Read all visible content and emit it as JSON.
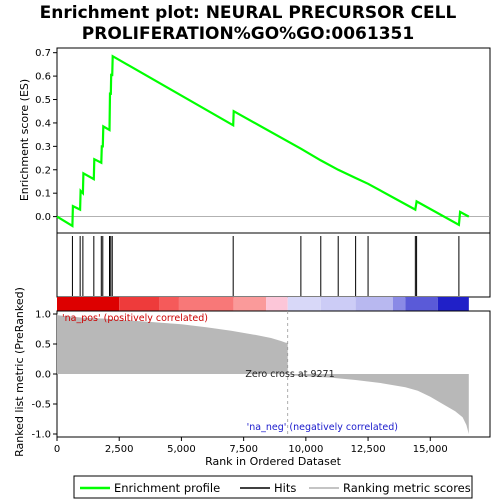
{
  "chart_data": {
    "type": "line",
    "title_line1": "Enrichment plot: NEURAL PRECURSOR CELL",
    "title_line2": "PROLIFERATION%GO%GO:0061351",
    "es_panel": {
      "ylabel": "Enrichment score (ES)",
      "ylim": [
        -0.07,
        0.72
      ],
      "yticks": [
        "0.0",
        "0.1",
        "0.2",
        "0.3",
        "0.4",
        "0.5",
        "0.6",
        "0.7"
      ],
      "ytick_values": [
        0.0,
        0.1,
        0.2,
        0.3,
        0.4,
        0.5,
        0.6,
        0.7
      ],
      "line_color": "#00ff00",
      "series": {
        "name": "Enrichment profile",
        "x": [
          0,
          620,
          640,
          930,
          950,
          1040,
          1060,
          1480,
          1500,
          1780,
          1800,
          1840,
          1860,
          2110,
          2130,
          2160,
          2180,
          2220,
          2240,
          7080,
          7100,
          9800,
          10600,
          11300,
          12000,
          12500,
          14400,
          14450,
          16150,
          16200,
          16550
        ],
        "y": [
          0.0,
          -0.04,
          0.045,
          0.03,
          0.11,
          0.1,
          0.185,
          0.16,
          0.245,
          0.23,
          0.3,
          0.3,
          0.385,
          0.37,
          0.53,
          0.52,
          0.61,
          0.6,
          0.685,
          0.39,
          0.45,
          0.29,
          0.24,
          0.2,
          0.165,
          0.14,
          0.03,
          0.065,
          -0.035,
          0.02,
          0.0
        ]
      }
    },
    "hits_panel": {
      "hit_positions": [
        620,
        930,
        1040,
        1480,
        1780,
        1840,
        2110,
        2160,
        2220,
        7080,
        9800,
        10600,
        11300,
        12000,
        12500,
        14400,
        14450,
        16150
      ]
    },
    "color_bar": {
      "segments": [
        {
          "from": 0,
          "to": 2500,
          "color": "#dd0000"
        },
        {
          "from": 2500,
          "to": 4100,
          "color": "#ee3b3b"
        },
        {
          "from": 4100,
          "to": 4900,
          "color": "#f55a5a"
        },
        {
          "from": 4900,
          "to": 7100,
          "color": "#f87878"
        },
        {
          "from": 7100,
          "to": 8400,
          "color": "#fa9a9a"
        },
        {
          "from": 8400,
          "to": 9271,
          "color": "#fcc6d8"
        },
        {
          "from": 9271,
          "to": 10600,
          "color": "#d8d8f8"
        },
        {
          "from": 10600,
          "to": 12000,
          "color": "#ccccf6"
        },
        {
          "from": 12000,
          "to": 13500,
          "color": "#b8b8f0"
        },
        {
          "from": 13500,
          "to": 14000,
          "color": "#8a8ae6"
        },
        {
          "from": 14000,
          "to": 15300,
          "color": "#5a5ad8"
        },
        {
          "from": 15300,
          "to": 16550,
          "color": "#2020c8"
        }
      ]
    },
    "rank_panel": {
      "ylabel": "Ranked list metric (PreRanked)",
      "xlabel": "Rank in Ordered Dataset",
      "ylim": [
        -1.05,
        1.05
      ],
      "yticks": [
        "1.0",
        "0.5",
        "0.0",
        "-0.5",
        "-1.0"
      ],
      "ytick_values": [
        1.0,
        0.5,
        0.0,
        -0.5,
        -1.0
      ],
      "xlim": [
        0,
        17400
      ],
      "xticks": [
        "0",
        "2,500",
        "5,000",
        "7,500",
        "10,000",
        "12,500",
        "15,000"
      ],
      "xtick_values": [
        0,
        2500,
        5000,
        7500,
        10000,
        12500,
        15000
      ],
      "x": [
        0,
        50,
        200,
        500,
        1000,
        2000,
        3000,
        4000,
        5000,
        6000,
        7000,
        8000,
        8600,
        9000,
        9200,
        9271,
        9400,
        10000,
        11000,
        12000,
        13000,
        14000,
        14500,
        15000,
        15500,
        16000,
        16300,
        16450,
        16550
      ],
      "values": [
        1.0,
        0.98,
        0.97,
        0.96,
        0.94,
        0.92,
        0.89,
        0.86,
        0.83,
        0.78,
        0.72,
        0.65,
        0.6,
        0.55,
        0.52,
        0.0,
        -0.02,
        -0.04,
        -0.06,
        -0.1,
        -0.15,
        -0.22,
        -0.28,
        -0.38,
        -0.5,
        -0.62,
        -0.72,
        -0.85,
        -1.0
      ],
      "zero_cross_label": "Zero cross at 9271",
      "zero_cross_x": 9271,
      "pos_label": "'na_pos' (positively correlated)",
      "neg_label": "'na_neg' (negatively correlated)",
      "pos_label_color": "#cc0000",
      "neg_label_color": "#1a1acc"
    },
    "legend": [
      {
        "label": "Enrichment profile",
        "color": "#00ff00"
      },
      {
        "label": "Hits",
        "color": "#000000"
      },
      {
        "label": "Ranking metric scores",
        "color": "#b0b0b0"
      }
    ]
  }
}
